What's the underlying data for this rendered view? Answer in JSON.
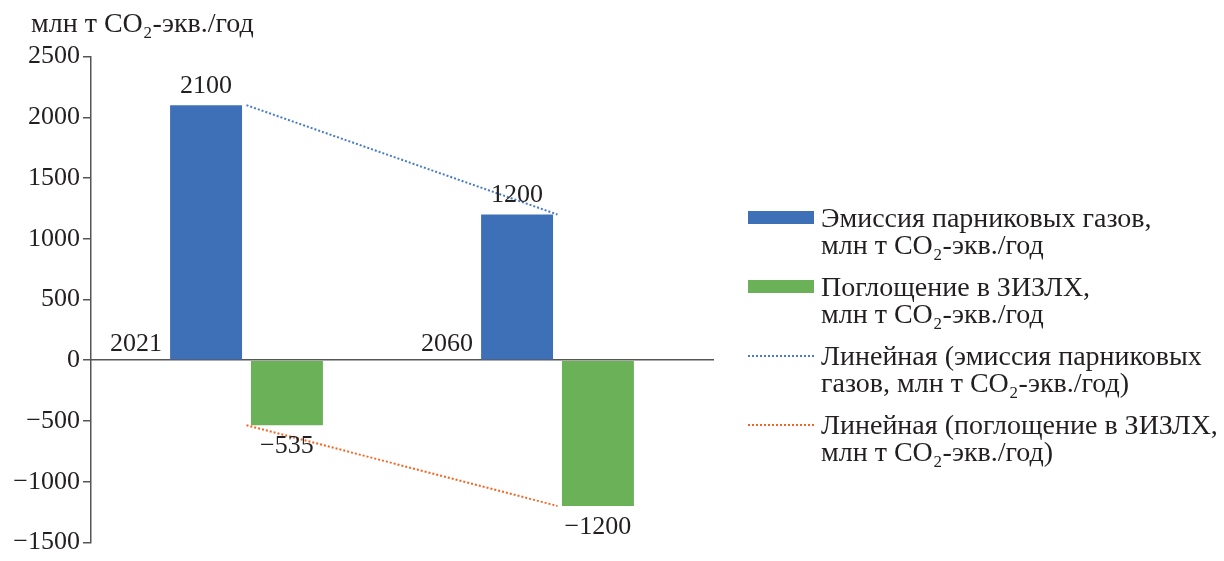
{
  "chart_data": {
    "type": "bar",
    "ylabel": "млн т CO₂-экв./год",
    "categories": [
      "2021",
      "2060"
    ],
    "series": [
      {
        "name": "Эмиссия парниковых газов,\nмлн т CO₂-экв./год",
        "color": "#3e70b8",
        "values": [
          2100,
          1200
        ],
        "value_labels": [
          "2100",
          "1200"
        ]
      },
      {
        "name": "Поглощение в ЗИЗЛХ,\nмлн т CO₂-экв./год",
        "color": "#6ab157",
        "values": [
          -535,
          -1200
        ],
        "value_labels": [
          "−535",
          "−1200"
        ]
      },
      {
        "type": "line",
        "name": "Линейная (эмиссия парниковых газов, млн т CO₂-экв./год)",
        "color": "#4a7cc4",
        "values": [
          2100,
          1200
        ],
        "line_style": "dotted",
        "marker": "none"
      },
      {
        "type": "line",
        "name": "Линейная (поглощение в ЗИЗЛХ, млн т CO₂-экв./год)",
        "color": "#f26522",
        "values": [
          -535,
          -1200
        ],
        "line_style": "dotted",
        "marker": "none"
      }
    ],
    "ylim": [
      -1500,
      2500
    ],
    "yticks": [
      {
        "value": -1500,
        "label": "−1500"
      },
      {
        "value": -1000,
        "label": "−1000"
      },
      {
        "value": -500,
        "label": "−500"
      },
      0,
      500,
      1000,
      1500,
      2000,
      2500
    ],
    "legend": "right"
  }
}
